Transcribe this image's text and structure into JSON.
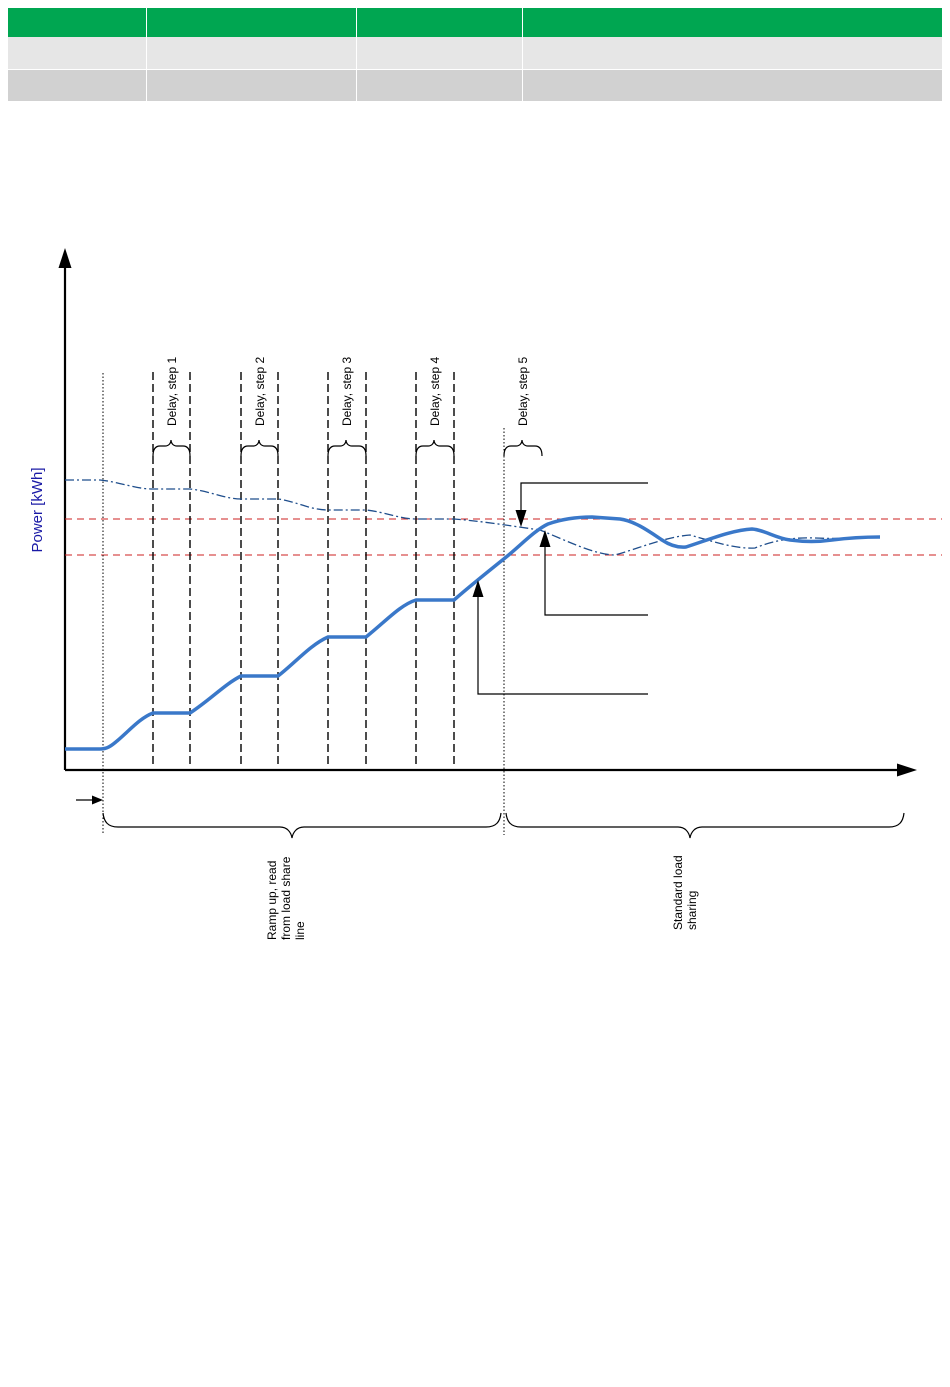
{
  "table": {
    "column_count": 4,
    "rows": [
      [
        "",
        "",
        "",
        ""
      ],
      [
        "",
        "",
        "",
        ""
      ],
      [
        "",
        "",
        "",
        ""
      ]
    ]
  },
  "diagram": {
    "y_axis_label": "Power [kWh]",
    "step_labels": [
      "Delay, step 1",
      "Delay, step 2",
      "Delay, step 3",
      "Delay, step 4",
      "Delay, step 5"
    ],
    "phase_ramp_label": "Ramp up, read\nfrom load share\nline",
    "phase_standard_label": "Standard load\nsharing",
    "colors": {
      "generator_power": "#3a78c9",
      "load_share_line": "#1f4e8c",
      "limit_lines": "#cc2222",
      "axis_label": "#1a1aa6",
      "axes": "#000000"
    },
    "icons": [
      "y-axis-arrow-icon",
      "x-axis-arrow-icon",
      "start-arrow-icon"
    ]
  }
}
